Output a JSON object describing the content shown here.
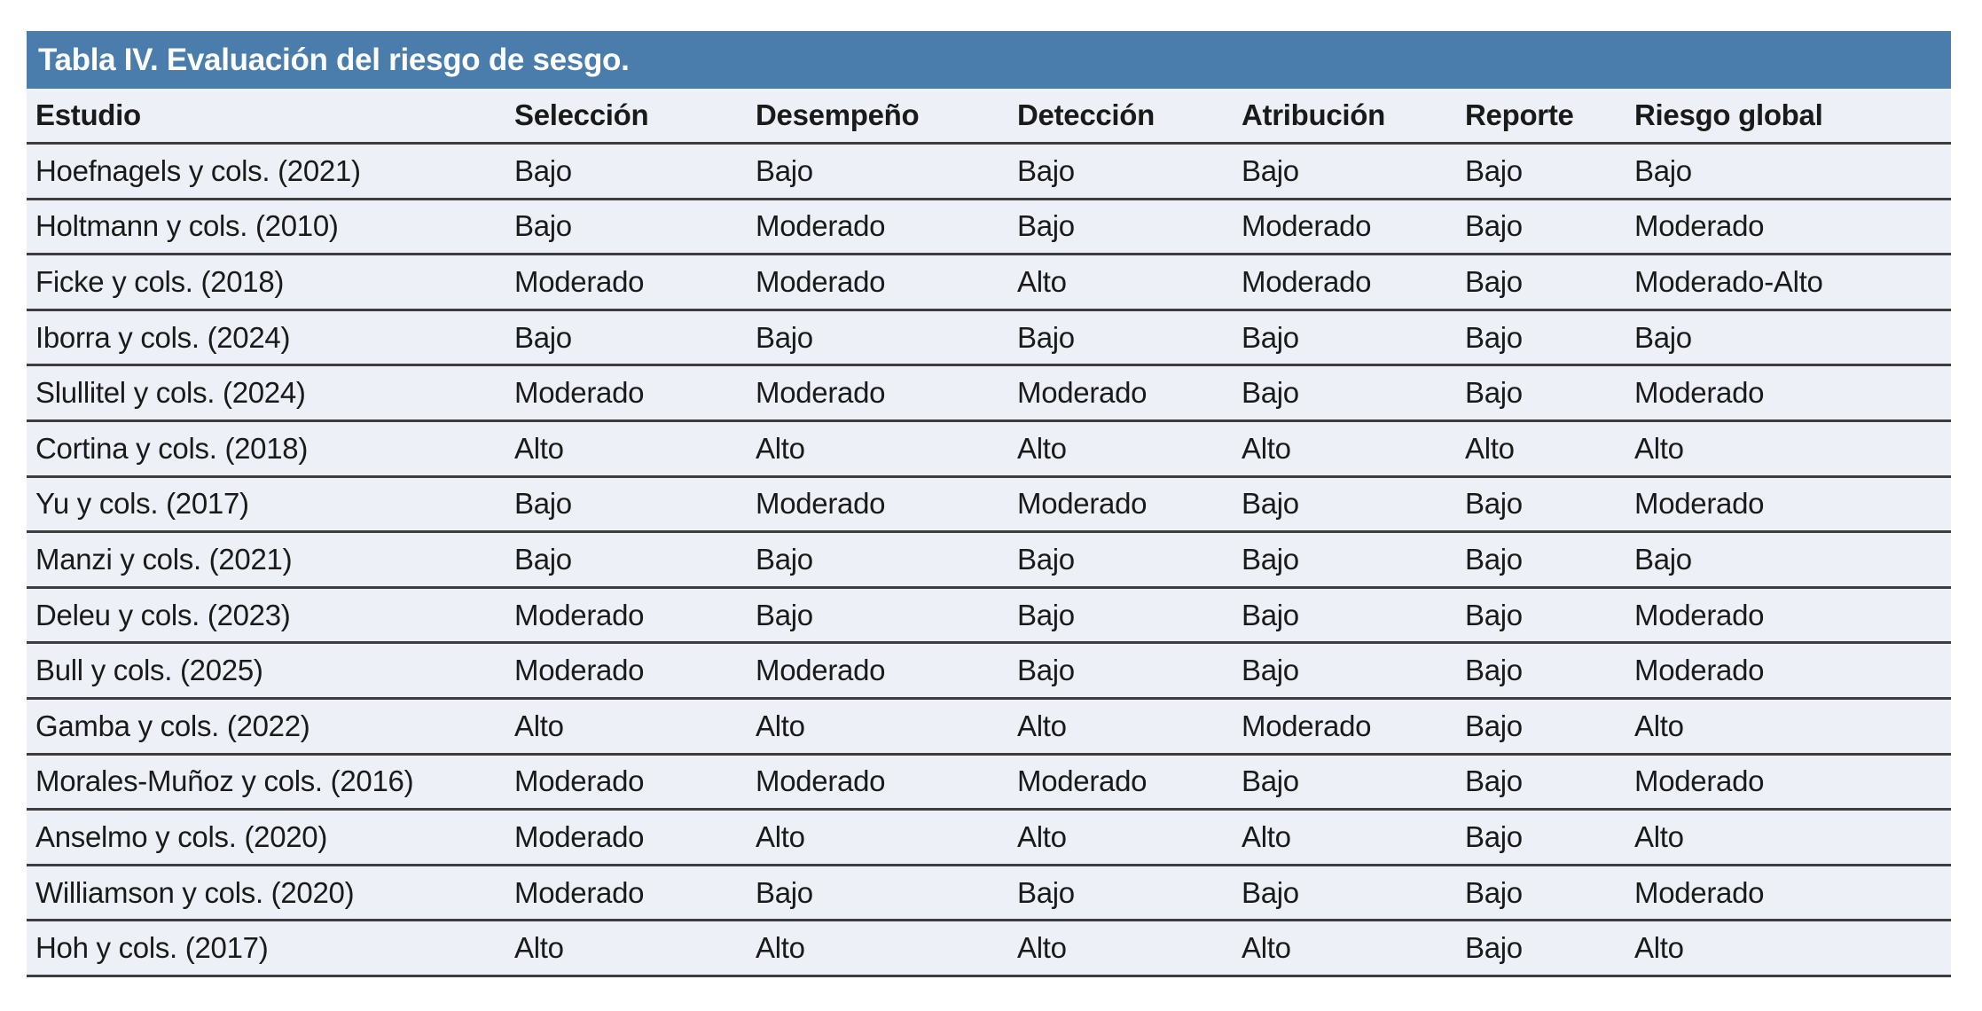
{
  "table": {
    "title": "Tabla IV. Evaluación del riesgo de sesgo.",
    "columns": [
      "Estudio",
      "Selección",
      "Desempeño",
      "Detección",
      "Atribución",
      "Reporte",
      "Riesgo global"
    ],
    "rows": [
      [
        "Hoefnagels y cols. (2021)",
        "Bajo",
        "Bajo",
        "Bajo",
        "Bajo",
        "Bajo",
        "Bajo"
      ],
      [
        "Holtmann y cols. (2010)",
        "Bajo",
        "Moderado",
        "Bajo",
        "Moderado",
        "Bajo",
        "Moderado"
      ],
      [
        "Ficke y cols. (2018)",
        "Moderado",
        "Moderado",
        "Alto",
        "Moderado",
        "Bajo",
        "Moderado-Alto"
      ],
      [
        "Iborra y cols. (2024)",
        "Bajo",
        "Bajo",
        "Bajo",
        "Bajo",
        "Bajo",
        "Bajo"
      ],
      [
        "Slullitel y cols. (2024)",
        "Moderado",
        "Moderado",
        "Moderado",
        "Bajo",
        "Bajo",
        "Moderado"
      ],
      [
        "Cortina y cols. (2018)",
        "Alto",
        "Alto",
        "Alto",
        "Alto",
        "Alto",
        "Alto"
      ],
      [
        "Yu y cols. (2017)",
        "Bajo",
        "Moderado",
        "Moderado",
        "Bajo",
        "Bajo",
        "Moderado"
      ],
      [
        "Manzi y cols. (2021)",
        "Bajo",
        "Bajo",
        "Bajo",
        "Bajo",
        "Bajo",
        "Bajo"
      ],
      [
        "Deleu y cols. (2023)",
        "Moderado",
        "Bajo",
        "Bajo",
        "Bajo",
        "Bajo",
        "Moderado"
      ],
      [
        "Bull y cols. (2025)",
        "Moderado",
        "Moderado",
        "Bajo",
        "Bajo",
        "Bajo",
        "Moderado"
      ],
      [
        "Gamba y cols. (2022)",
        "Alto",
        "Alto",
        "Alto",
        "Moderado",
        "Bajo",
        "Alto"
      ],
      [
        "Morales-Muñoz y cols. (2016)",
        "Moderado",
        "Moderado",
        "Moderado",
        "Bajo",
        "Bajo",
        "Moderado"
      ],
      [
        "Anselmo y cols. (2020)",
        "Moderado",
        "Alto",
        "Alto",
        "Alto",
        "Bajo",
        "Alto"
      ],
      [
        "Williamson y cols. (2020)",
        "Moderado",
        "Bajo",
        "Bajo",
        "Bajo",
        "Bajo",
        "Moderado"
      ],
      [
        "Hoh y cols. (2017)",
        "Alto",
        "Alto",
        "Alto",
        "Alto",
        "Bajo",
        "Alto"
      ]
    ],
    "colors": {
      "title_bar_bg": "#4A7CAC",
      "title_text": "#FFFFFF",
      "row_bg": "#EDF0F6",
      "divider": "#3D3D3D",
      "text": "#1A1A1A"
    }
  }
}
